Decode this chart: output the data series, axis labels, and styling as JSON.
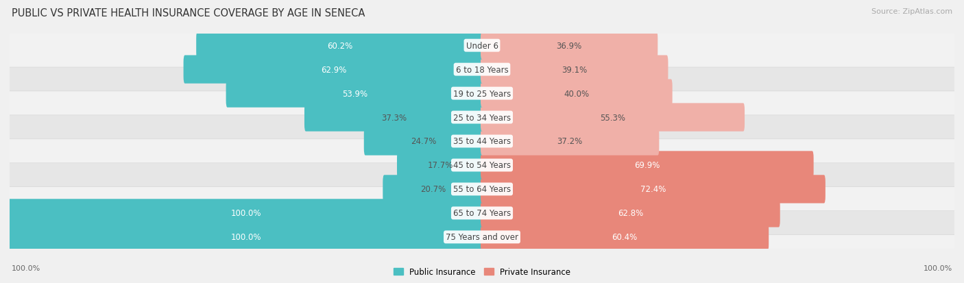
{
  "title": "PUBLIC VS PRIVATE HEALTH INSURANCE COVERAGE BY AGE IN SENECA",
  "source": "Source: ZipAtlas.com",
  "categories": [
    "Under 6",
    "6 to 18 Years",
    "19 to 25 Years",
    "25 to 34 Years",
    "35 to 44 Years",
    "45 to 54 Years",
    "55 to 64 Years",
    "65 to 74 Years",
    "75 Years and over"
  ],
  "public_values": [
    60.2,
    62.9,
    53.9,
    37.3,
    24.7,
    17.7,
    20.7,
    100.0,
    100.0
  ],
  "private_values": [
    36.9,
    39.1,
    40.0,
    55.3,
    37.2,
    69.9,
    72.4,
    62.8,
    60.4
  ],
  "public_color": "#4bbfc2",
  "private_color": "#e8877a",
  "private_color_light": "#f0b0a8",
  "row_bg_color_light": "#f2f2f2",
  "row_bg_color_dark": "#e6e6e6",
  "figure_bg_color": "#f0f0f0",
  "max_value": 100.0,
  "label_color_dark": "#555555",
  "label_color_white": "#ffffff",
  "title_fontsize": 10.5,
  "bar_label_fontsize": 8.5,
  "category_fontsize": 8.5,
  "legend_fontsize": 8.5,
  "source_fontsize": 8,
  "axis_label_fontsize": 8
}
